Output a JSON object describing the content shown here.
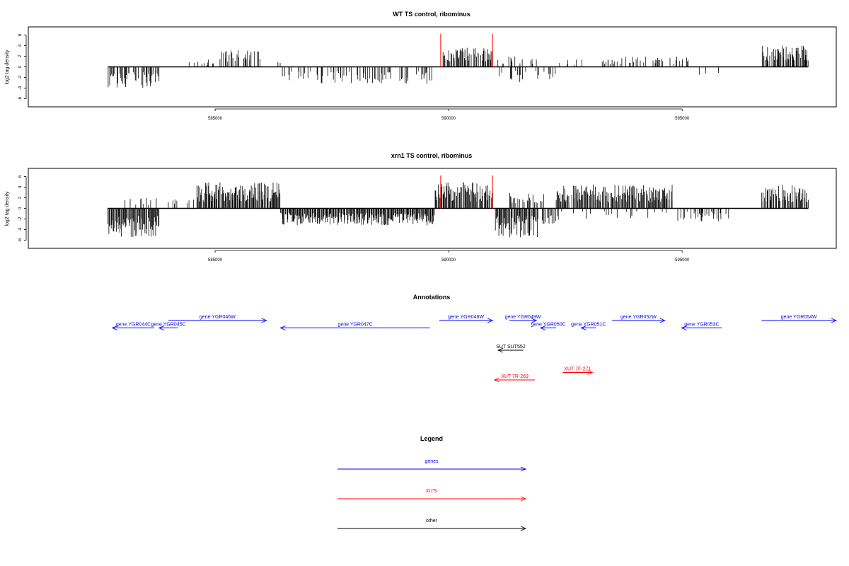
{
  "colors": {
    "gene": "#0000ff",
    "xut": "#ff0000",
    "other": "#000000",
    "marker": "#ff0000"
  },
  "chart_data": [
    {
      "type": "bar",
      "id": "wt",
      "title": "WT TS control, ribominus",
      "ylabel": "log2 tag density",
      "ylim": [
        -7,
        7
      ],
      "xlim": [
        581000,
        598300
      ],
      "data_range": [
        582700,
        597700
      ],
      "xticks": [
        585000,
        590000,
        595000
      ],
      "xtick_labels": [
        "585000",
        "590000",
        "595000"
      ],
      "yticks": [
        -6,
        -4,
        -2,
        0,
        2,
        4,
        6
      ],
      "ytick_labels": [
        "-6",
        "-4",
        "-2",
        "0",
        "2",
        "4",
        "6"
      ],
      "markers_x": [
        589830,
        590940
      ],
      "marker_height": 6.2,
      "series": [
        {
          "regions": [
            [
              582700,
              583800,
              -4.0,
              0.55
            ],
            [
              584100,
              585000,
              1.0,
              0.15
            ],
            [
              584650,
              585000,
              1.5,
              0.2
            ],
            [
              585100,
              586000,
              3.2,
              0.4
            ],
            [
              586300,
              586400,
              1.0,
              0.3
            ],
            [
              586400,
              589700,
              -3.2,
              0.3
            ],
            [
              589880,
              590950,
              3.6,
              0.7
            ],
            [
              591000,
              592300,
              -3.0,
              0.3
            ],
            [
              591000,
              591900,
              2.0,
              0.3
            ],
            [
              592300,
              593000,
              1.5,
              0.12
            ],
            [
              593200,
              595200,
              2.0,
              0.3
            ],
            [
              595300,
              595800,
              -1.5,
              0.18
            ],
            [
              596700,
              597700,
              4.0,
              0.85
            ]
          ]
        }
      ]
    },
    {
      "type": "bar",
      "id": "xrn1",
      "title": "xrn1 TS control, ribominus",
      "ylabel": "log2 tag density",
      "ylim": [
        -7,
        7
      ],
      "xlim": [
        581000,
        598300
      ],
      "data_range": [
        582700,
        597700
      ],
      "xticks": [
        585000,
        590000,
        595000
      ],
      "xtick_labels": [
        "585000",
        "590000",
        "595000"
      ],
      "yticks": [
        -6,
        -4,
        -2,
        0,
        2,
        4,
        6
      ],
      "ytick_labels": [
        "-6",
        "-4",
        "-2",
        "0",
        "2",
        "4",
        "6"
      ],
      "markers_x": [
        589830,
        590940
      ],
      "marker_height": 6.2,
      "series": [
        {
          "regions": [
            [
              582700,
              583800,
              -5.5,
              0.95
            ],
            [
              583000,
              584200,
              2.0,
              0.15
            ],
            [
              584400,
              584600,
              2.0,
              0.2
            ],
            [
              584600,
              586400,
              5.0,
              0.95
            ],
            [
              586400,
              589700,
              -3.2,
              0.95
            ],
            [
              589700,
              590950,
              5.0,
              0.95
            ],
            [
              591000,
              591900,
              -5.5,
              0.95
            ],
            [
              591300,
              592100,
              3.0,
              0.3
            ],
            [
              591900,
              592400,
              -3.0,
              0.4
            ],
            [
              592300,
              594800,
              4.5,
              0.9
            ],
            [
              592300,
              594800,
              -2.0,
              0.1
            ],
            [
              594900,
              596000,
              -2.5,
              0.35
            ],
            [
              596700,
              597700,
              4.5,
              0.9
            ]
          ]
        }
      ]
    }
  ],
  "annotations": {
    "title": "Annotations",
    "features": [
      {
        "label": "gene YGR044C",
        "category": "gene",
        "start": 582800,
        "end": 583700,
        "strand": "-",
        "row": 1
      },
      {
        "label": "gene YGR045C",
        "category": "gene",
        "start": 583800,
        "end": 584200,
        "strand": "-",
        "row": 1
      },
      {
        "label": "gene YGR046W",
        "category": "gene",
        "start": 584000,
        "end": 586100,
        "strand": "+",
        "row": 0
      },
      {
        "label": "gene YGR047C",
        "category": "gene",
        "start": 586400,
        "end": 589600,
        "strand": "-",
        "row": 1
      },
      {
        "label": "gene YGR048W",
        "category": "gene",
        "start": 589800,
        "end": 590940,
        "strand": "+",
        "row": 0
      },
      {
        "label": "gene YGR049W",
        "category": "gene",
        "start": 591300,
        "end": 591880,
        "strand": "+",
        "row": 0
      },
      {
        "label": "gene YGR050C",
        "category": "gene",
        "start": 591970,
        "end": 592300,
        "strand": "-",
        "row": 1
      },
      {
        "label": "gene YGR051C",
        "category": "gene",
        "start": 592840,
        "end": 593150,
        "strand": "-",
        "row": 1
      },
      {
        "label": "gene YGR052W",
        "category": "gene",
        "start": 593500,
        "end": 594630,
        "strand": "+",
        "row": 0
      },
      {
        "label": "gene YGR053C",
        "category": "gene",
        "start": 594990,
        "end": 595850,
        "strand": "-",
        "row": 1
      },
      {
        "label": "gene YGR054W",
        "category": "gene",
        "start": 596700,
        "end": 598300,
        "strand": "+",
        "row": 0
      },
      {
        "label": "SUT SUT552",
        "category": "other",
        "start": 591060,
        "end": 591600,
        "strand": "-",
        "row": 4
      },
      {
        "label": "XUT 7F-271",
        "category": "xut",
        "start": 592440,
        "end": 593080,
        "strand": "+",
        "row": 7
      },
      {
        "label": "XUT 7R-269",
        "category": "xut",
        "start": 590980,
        "end": 591850,
        "strand": "-",
        "row": 8
      }
    ]
  },
  "legend": {
    "title": "Legend",
    "items": [
      {
        "label": "genes",
        "category": "gene"
      },
      {
        "label": "XUTs",
        "category": "xut"
      },
      {
        "label": "other",
        "category": "other"
      }
    ]
  }
}
